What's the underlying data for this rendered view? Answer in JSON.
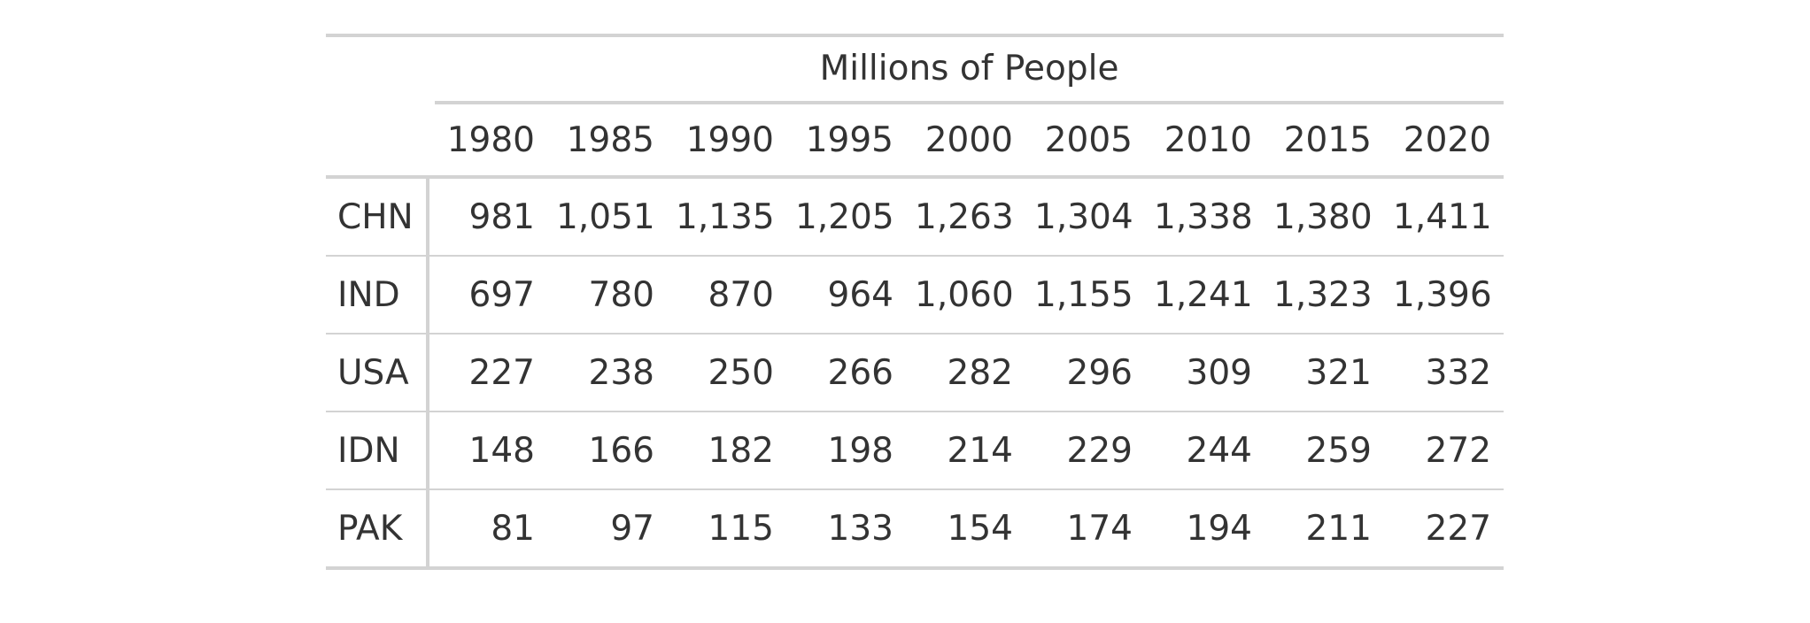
{
  "table": {
    "spanner_label": "Millions of People",
    "columns": [
      "1980",
      "1985",
      "1990",
      "1995",
      "2000",
      "2005",
      "2010",
      "2015",
      "2020"
    ],
    "rows": [
      {
        "label": "CHN",
        "values": [
          "981",
          "1,051",
          "1,135",
          "1,205",
          "1,263",
          "1,304",
          "1,338",
          "1,380",
          "1,411"
        ]
      },
      {
        "label": "IND",
        "values": [
          "697",
          "780",
          "870",
          "964",
          "1,060",
          "1,155",
          "1,241",
          "1,323",
          "1,396"
        ]
      },
      {
        "label": "USA",
        "values": [
          "227",
          "238",
          "250",
          "266",
          "282",
          "296",
          "309",
          "321",
          "332"
        ]
      },
      {
        "label": "IDN",
        "values": [
          "148",
          "166",
          "182",
          "198",
          "214",
          "229",
          "244",
          "259",
          "272"
        ]
      },
      {
        "label": "PAK",
        "values": [
          "81",
          "97",
          "115",
          "133",
          "154",
          "174",
          "194",
          "211",
          "227"
        ]
      }
    ]
  }
}
